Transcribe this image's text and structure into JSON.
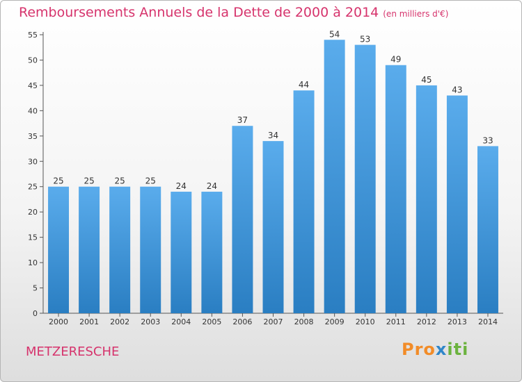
{
  "header": {
    "title": "Remboursements Annuels de la Dette de 2000 à 2014",
    "unit": "(en milliers d'€)"
  },
  "footer": {
    "commune": "METZERESCHE",
    "logo_parts": [
      "Pro",
      "x",
      "iti"
    ]
  },
  "colors": {
    "title": "#d6336c",
    "bar_top": "#5aacec",
    "bar_bottom": "#2a7ec2"
  },
  "chart_data": {
    "type": "bar",
    "title": "Remboursements Annuels de la Dette de 2000 à 2014",
    "xlabel": "",
    "ylabel": "",
    "categories": [
      "2000",
      "2001",
      "2002",
      "2003",
      "2004",
      "2005",
      "2006",
      "2007",
      "2008",
      "2009",
      "2010",
      "2011",
      "2012",
      "2013",
      "2014"
    ],
    "values": [
      25,
      25,
      25,
      25,
      24,
      24,
      37,
      34,
      44,
      54,
      53,
      49,
      45,
      43,
      33
    ],
    "ylim": [
      0,
      55
    ],
    "yticks": [
      0,
      5,
      10,
      15,
      20,
      25,
      30,
      35,
      40,
      45,
      50,
      55
    ],
    "grid": false,
    "legend": "none"
  }
}
